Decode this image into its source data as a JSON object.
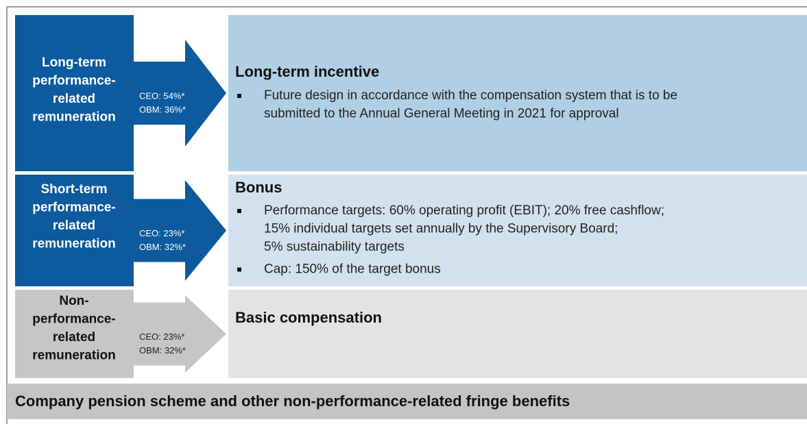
{
  "rows": [
    {
      "label": [
        "Long-term",
        "performance-",
        "related",
        "remuneration"
      ],
      "ceo": "CEO: 54%*",
      "obm": "OBM: 36%*",
      "title": "Long-term incentive",
      "bullets": [
        [
          "Future design in accordance with the compensation system that is to be",
          "submitted to the Annual General Meeting in 2021 for approval"
        ]
      ]
    },
    {
      "label": [
        "Short-term",
        "performance-",
        "related",
        "remuneration"
      ],
      "ceo": "CEO: 23%*",
      "obm": "OBM: 32%*",
      "title": "Bonus",
      "bullets": [
        [
          "Performance targets: 60% operating profit (EBIT); 20% free cashflow;",
          "15% individual targets set annually by the Supervisory Board;",
          "5% sustainability targets"
        ],
        [
          "Cap: 150% of the target bonus"
        ]
      ]
    },
    {
      "label": [
        "Non-",
        "performance-",
        "related",
        "remuneration"
      ],
      "ceo": "CEO: 23%*",
      "obm": "OBM: 32%*",
      "title": "Basic compensation",
      "bullets": []
    }
  ],
  "footer": "Company pension scheme and other non-performance-related fringe benefits"
}
